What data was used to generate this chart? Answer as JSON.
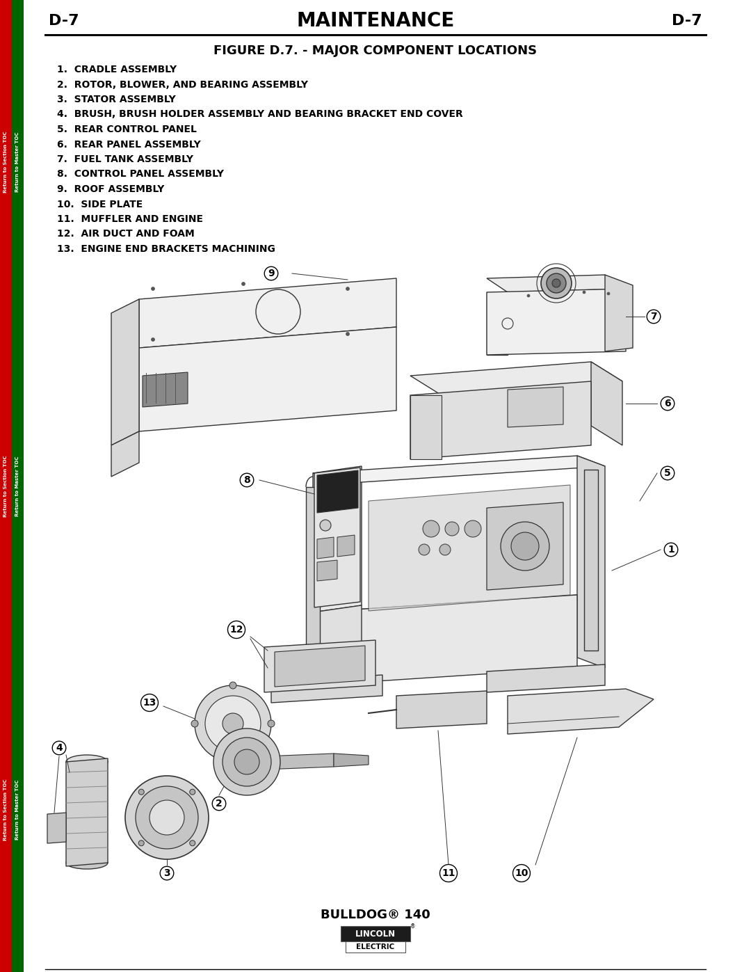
{
  "page_width": 10.8,
  "page_height": 13.97,
  "background_color": "#ffffff",
  "header_text": "MAINTENANCE",
  "header_left": "D-7",
  "header_right": "D-7",
  "figure_title": "FIGURE D.7. - MAJOR COMPONENT LOCATIONS",
  "components": [
    "1.  CRADLE ASSEMBLY",
    "2.  ROTOR, BLOWER, AND BEARING ASSEMBLY",
    "3.  STATOR ASSEMBLY",
    "4.  BRUSH, BRUSH HOLDER ASSEMBLY AND BEARING BRACKET END COVER",
    "5.  REAR CONTROL PANEL",
    "6.  REAR PANEL ASSEMBLY",
    "7.  FUEL TANK ASSEMBLY",
    "8.  CONTROL PANEL ASSEMBLY",
    "9.  ROOF ASSEMBLY",
    "10.  SIDE PLATE",
    "11.  MUFFLER AND ENGINE",
    "12.  AIR DUCT AND FOAM",
    "13.  ENGINE END BRACKETS MACHINING"
  ],
  "footer_text": "BULLDOG® 140",
  "sidebar_red_color": "#cc0000",
  "sidebar_green_color": "#006600",
  "text_color": "#000000",
  "header_font_size": 20,
  "figure_title_font_size": 13,
  "component_font_size": 10.5,
  "footer_font_size": 12,
  "line_color": "#333333",
  "fill_light": "#f0f0f0",
  "fill_mid": "#d8d8d8",
  "fill_dark": "#aaaaaa"
}
